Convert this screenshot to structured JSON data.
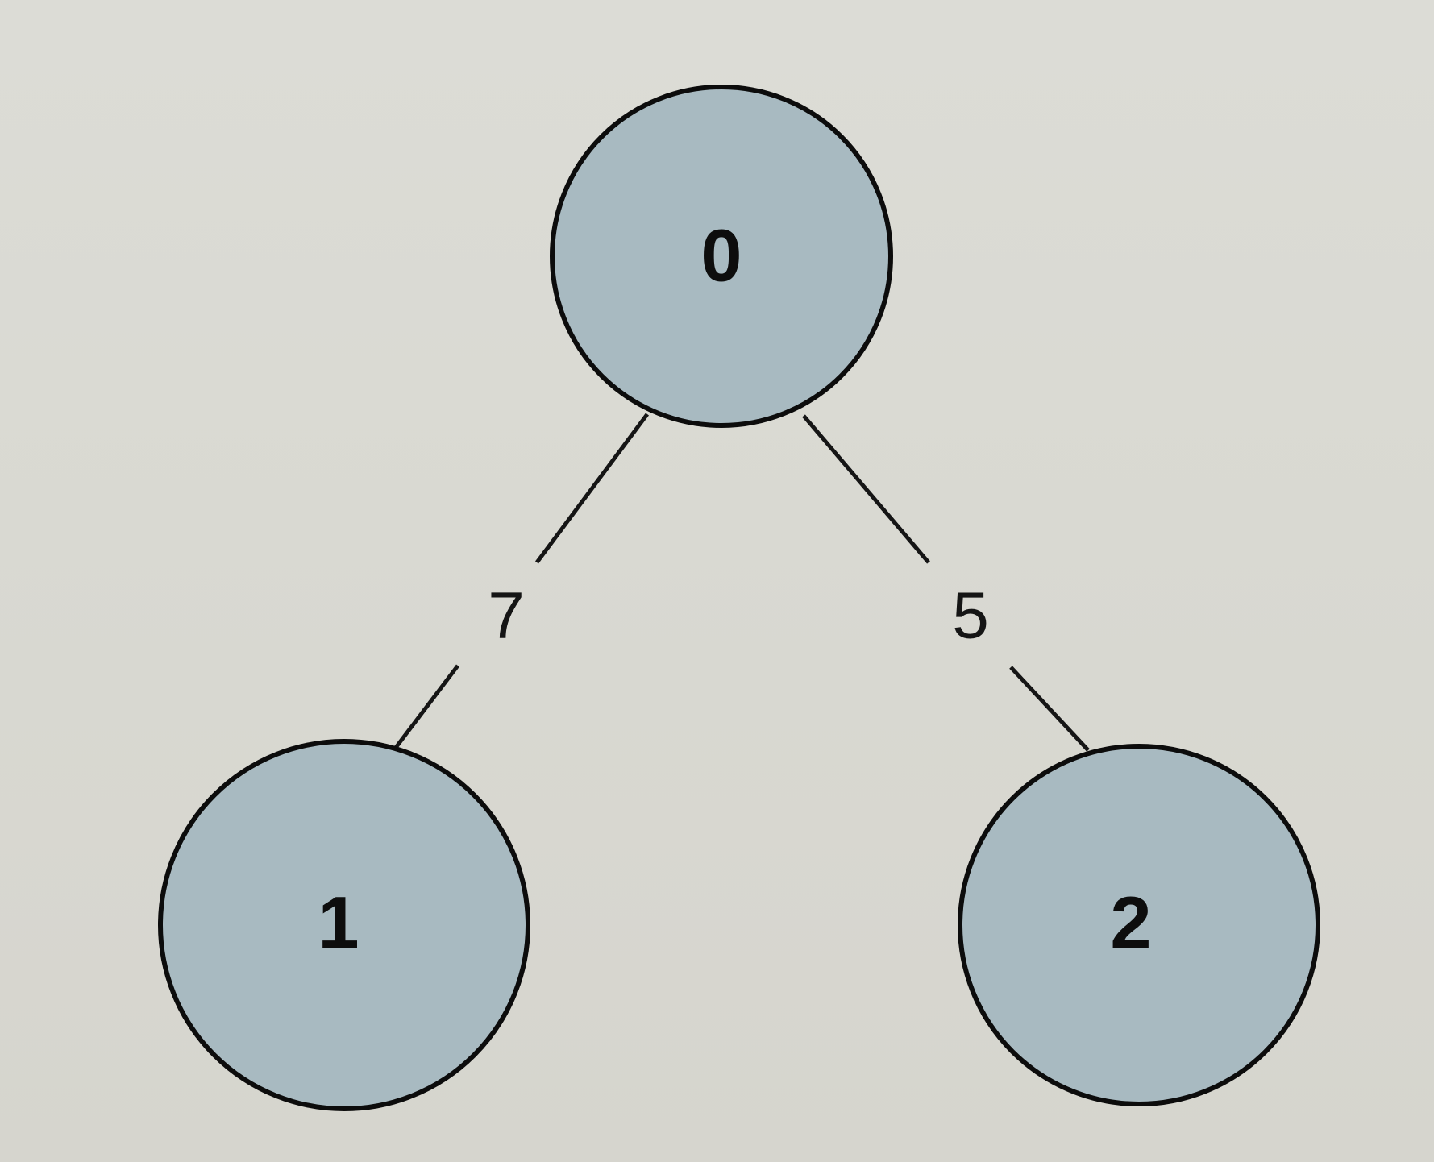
{
  "diagram": {
    "type": "weighted-tree",
    "nodes": [
      {
        "id": "0",
        "label": "0"
      },
      {
        "id": "1",
        "label": "1"
      },
      {
        "id": "2",
        "label": "2"
      }
    ],
    "edges": [
      {
        "from": "0",
        "to": "1",
        "weight": "7"
      },
      {
        "from": "0",
        "to": "2",
        "weight": "5"
      }
    ],
    "colors": {
      "node_fill": "#a8bac1",
      "node_stroke": "#0c0c0c",
      "edge": "#151515",
      "background": "#d9d9d2"
    }
  }
}
